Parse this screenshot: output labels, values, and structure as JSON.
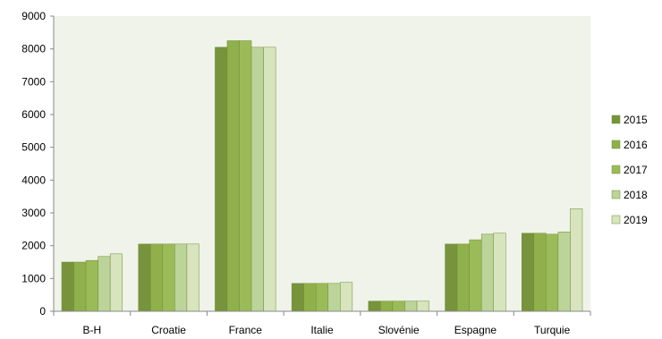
{
  "chart_data": {
    "type": "bar",
    "title": "",
    "xlabel": "",
    "ylabel": "",
    "categories": [
      "B-H",
      "Croatie",
      "France",
      "Italie",
      "Slovénie",
      "Espagne",
      "Turquie"
    ],
    "series": [
      {
        "name": "2015",
        "color": "#77933c",
        "values": [
          1500,
          2050,
          8050,
          850,
          310,
          2050,
          2380
        ]
      },
      {
        "name": "2016",
        "color": "#8fb04a",
        "values": [
          1500,
          2050,
          8250,
          850,
          310,
          2050,
          2380
        ]
      },
      {
        "name": "2017",
        "color": "#9bbb59",
        "values": [
          1550,
          2050,
          8250,
          850,
          310,
          2180,
          2350
        ]
      },
      {
        "name": "2018",
        "color": "#bcd39a",
        "values": [
          1670,
          2050,
          8050,
          850,
          310,
          2350,
          2420
        ]
      },
      {
        "name": "2019",
        "color": "#d7e4bd",
        "values": [
          1750,
          2050,
          8050,
          880,
          310,
          2380,
          3130
        ]
      }
    ],
    "ylim": [
      0,
      9000
    ],
    "yticks": [
      "0",
      "1000",
      "2000",
      "3000",
      "4000",
      "5000",
      "6000",
      "7000",
      "8000",
      "9000"
    ],
    "grid": false,
    "plot_background": "#eff3e9",
    "legend_position": "right"
  }
}
